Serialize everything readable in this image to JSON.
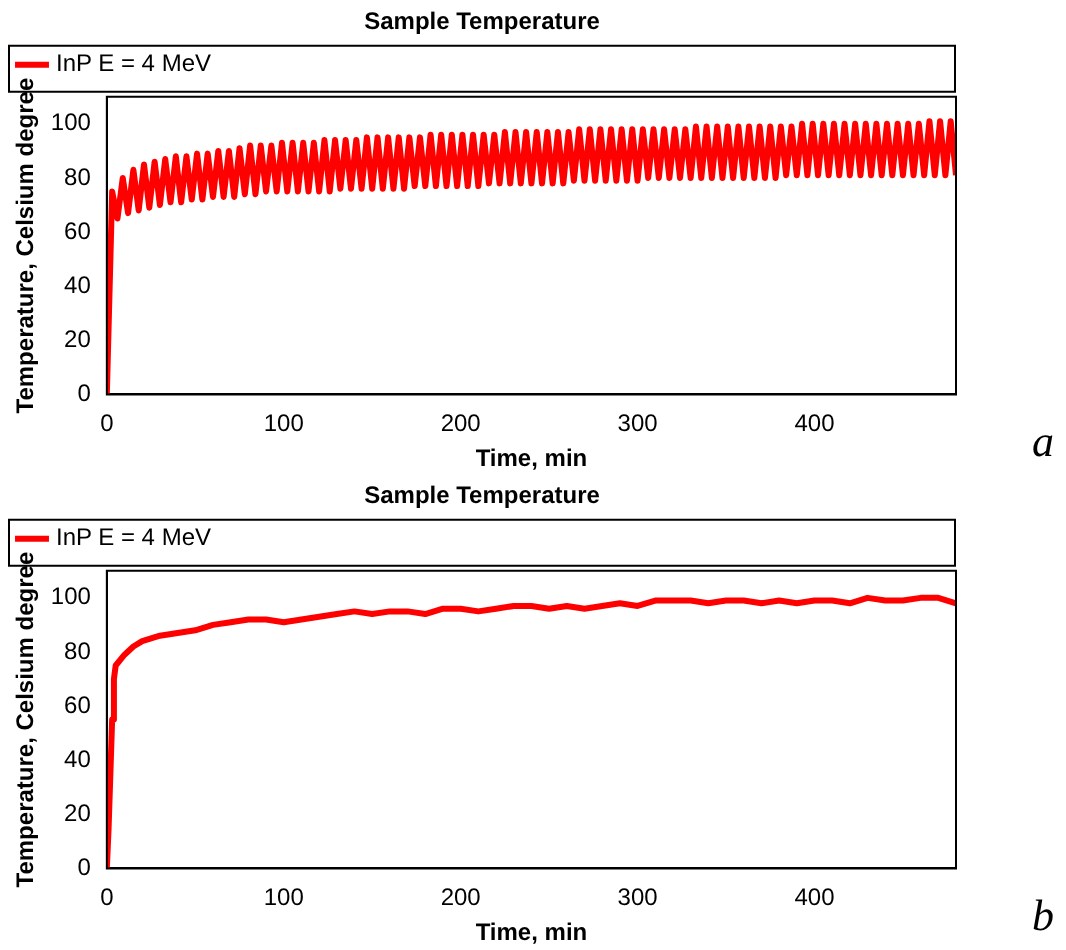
{
  "chart_data": [
    {
      "type": "line",
      "title": "Sample Temperature",
      "xlabel": "Time, min",
      "ylabel": "Temperature, Celsium degree",
      "annotations": [
        "a"
      ],
      "legend": "top left",
      "grid": false,
      "marker": "none",
      "line_style": "solid",
      "xlim": [
        0,
        480
      ],
      "xticks": [
        0,
        100,
        200,
        300,
        400
      ],
      "ylim": [
        0,
        110
      ],
      "yticks": [
        0,
        20,
        40,
        60,
        80,
        100
      ],
      "series": [
        {
          "name": "InP E = 4 MeV",
          "color": "#ff0000",
          "x": [
            0,
            3,
            6,
            9,
            12,
            15,
            18,
            21,
            24,
            27,
            30,
            33,
            36,
            39,
            42,
            45,
            48,
            51,
            54,
            57,
            60,
            63,
            66,
            69,
            72,
            75,
            78,
            81,
            84,
            87,
            90,
            93,
            96,
            99,
            102,
            105,
            108,
            111,
            114,
            117,
            120,
            123,
            126,
            129,
            132,
            135,
            138,
            141,
            144,
            147,
            150,
            153,
            156,
            159,
            162,
            165,
            168,
            171,
            174,
            177,
            180,
            183,
            186,
            189,
            192,
            195,
            198,
            201,
            204,
            207,
            210,
            213,
            216,
            219,
            222,
            225,
            228,
            231,
            234,
            237,
            240,
            243,
            246,
            249,
            252,
            255,
            258,
            261,
            264,
            267,
            270,
            273,
            276,
            279,
            282,
            285,
            288,
            291,
            294,
            297,
            300,
            303,
            306,
            309,
            312,
            315,
            318,
            321,
            324,
            327,
            330,
            333,
            336,
            339,
            342,
            345,
            348,
            351,
            354,
            357,
            360,
            363,
            366,
            369,
            372,
            375,
            378,
            381,
            384,
            387,
            390,
            393,
            396,
            399,
            402,
            405,
            408,
            411,
            414,
            417,
            420,
            423,
            426,
            429,
            432,
            435,
            438,
            441,
            444,
            447,
            450,
            453,
            456,
            459,
            462,
            465,
            468,
            471,
            474,
            477,
            480
          ],
          "values": [
            0,
            75,
            65,
            80,
            67,
            83,
            68,
            85,
            69,
            86,
            70,
            87,
            71,
            88,
            71,
            88,
            72,
            89,
            72,
            89,
            73,
            90,
            73,
            90,
            73,
            91,
            74,
            92,
            74,
            92,
            75,
            92,
            75,
            93,
            75,
            93,
            75,
            93,
            75,
            93,
            75,
            94,
            75,
            94,
            76,
            94,
            76,
            94,
            76,
            95,
            76,
            95,
            76,
            95,
            76,
            95,
            76,
            95,
            77,
            95,
            77,
            96,
            77,
            96,
            77,
            96,
            77,
            96,
            77,
            96,
            77,
            96,
            78,
            96,
            78,
            97,
            78,
            97,
            78,
            97,
            78,
            97,
            78,
            97,
            78,
            97,
            78,
            97,
            79,
            98,
            79,
            98,
            79,
            98,
            79,
            98,
            79,
            98,
            79,
            98,
            79,
            98,
            80,
            98,
            80,
            98,
            80,
            98,
            80,
            98,
            80,
            99,
            80,
            99,
            80,
            99,
            80,
            99,
            80,
            99,
            80,
            99,
            80,
            99,
            80,
            99,
            80,
            99,
            81,
            99,
            81,
            100,
            81,
            100,
            81,
            100,
            81,
            100,
            81,
            100,
            81,
            100,
            81,
            100,
            81,
            100,
            81,
            100,
            81,
            100,
            81,
            100,
            81,
            100,
            81,
            101,
            81,
            101,
            81,
            101,
            81
          ]
        }
      ]
    },
    {
      "type": "line",
      "title": "Sample Temperature",
      "xlabel": "Time, min",
      "ylabel": "Temperature, Celsium degree",
      "annotations": [
        "b"
      ],
      "legend": "top left",
      "grid": false,
      "marker": "none",
      "line_style": "solid",
      "xlim": [
        0,
        480
      ],
      "xticks": [
        0,
        100,
        200,
        300,
        400
      ],
      "ylim": [
        0,
        110
      ],
      "yticks": [
        0,
        20,
        40,
        60,
        80,
        100
      ],
      "series": [
        {
          "name": "InP E = 4 MeV",
          "color": "#ff0000",
          "x": [
            0,
            1,
            2,
            3,
            4,
            5,
            10,
            15,
            20,
            30,
            40,
            50,
            60,
            70,
            80,
            90,
            100,
            110,
            120,
            130,
            140,
            150,
            160,
            170,
            180,
            190,
            200,
            210,
            220,
            230,
            240,
            250,
            260,
            270,
            280,
            290,
            300,
            310,
            320,
            330,
            340,
            350,
            360,
            370,
            380,
            390,
            400,
            410,
            420,
            430,
            440,
            450,
            460,
            470,
            480
          ],
          "values": [
            0,
            15,
            35,
            55,
            70,
            75,
            79,
            82,
            84,
            86,
            87,
            88,
            90,
            91,
            92,
            92,
            91,
            92,
            93,
            94,
            95,
            94,
            95,
            95,
            94,
            96,
            96,
            95,
            96,
            97,
            97,
            96,
            97,
            96,
            97,
            98,
            97,
            99,
            99,
            99,
            98,
            99,
            99,
            98,
            99,
            98,
            99,
            99,
            98,
            100,
            99,
            99,
            100,
            100,
            98
          ]
        }
      ]
    }
  ]
}
